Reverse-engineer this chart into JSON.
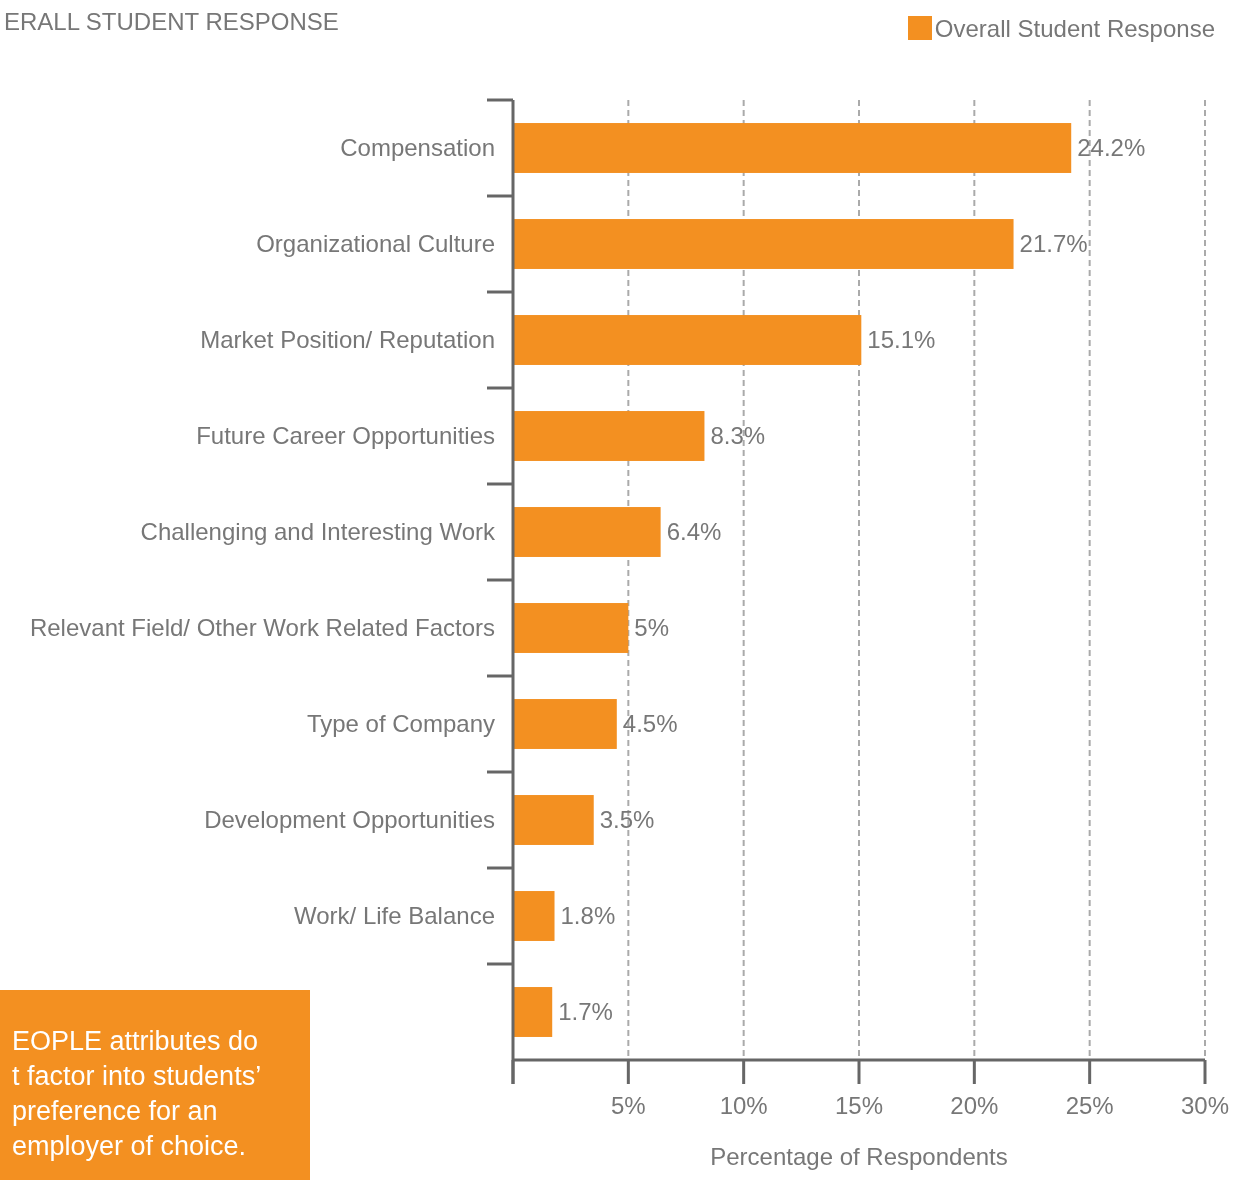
{
  "chart_data": {
    "type": "bar",
    "orientation": "horizontal",
    "title": "ERALL STUDENT RESPONSE",
    "xlabel": "Percentage of Respondents",
    "categories": [
      "Compensation",
      "Organizational Culture",
      "Market Position/ Reputation",
      "Future Career Opportunities",
      "Challenging and Interesting Work",
      "Relevant Field/ Other Work Related Factors",
      "Type of Company",
      "Development Opportunities",
      "Work/ Life Balance",
      null
    ],
    "series": [
      {
        "name": "Overall Student Response",
        "color": "#f39021",
        "values": [
          24.2,
          21.7,
          15.1,
          8.3,
          6.4,
          5,
          4.5,
          3.5,
          1.8,
          1.7
        ]
      }
    ],
    "value_labels": [
      "24.2%",
      "21.7%",
      "15.1%",
      "8.3%",
      "6.4%",
      "5%",
      "4.5%",
      "3.5%",
      "1.8%",
      "1.7%"
    ],
    "xlim": [
      0,
      30
    ],
    "xticks": [
      {
        "value": 0,
        "label": null
      },
      {
        "value": 5,
        "label": "5%"
      },
      {
        "value": 10,
        "label": "10%"
      },
      {
        "value": 15,
        "label": "15%"
      },
      {
        "value": 20,
        "label": "20%"
      },
      {
        "value": 25,
        "label": "25%"
      },
      {
        "value": 30,
        "label": "30%"
      }
    ],
    "grid": "x",
    "legend": "top right",
    "annotations": [
      "EOPLE attributes do\nt factor into students’\npreference for an\nemployer of choice."
    ]
  }
}
